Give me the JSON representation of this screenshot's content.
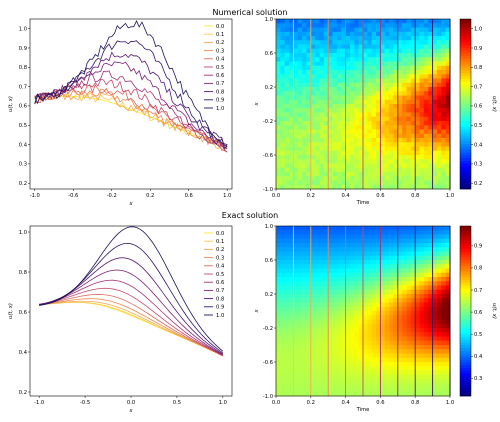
{
  "figure": {
    "title_top": "Numerical solution",
    "title_bottom": "Exact solution"
  },
  "chart_data": [
    {
      "id": "numerical-lines",
      "type": "line",
      "title": "Numerical solution",
      "xlabel": "x",
      "ylabel": "u(t, x)",
      "xlim": [
        -1.05,
        1.05
      ],
      "ylim": [
        0.17,
        1.05
      ],
      "xticks": [
        "-1.0",
        "-0.6",
        "-0.2",
        "0.2",
        "0.6",
        "1.0"
      ],
      "xtick_values": [
        -1.0,
        -0.6,
        -0.2,
        0.2,
        0.6,
        1.0
      ],
      "yticks": [
        "0.2",
        "0.3",
        "0.4",
        "0.5",
        "0.6",
        "0.7",
        "0.8",
        "0.9",
        "1.0"
      ],
      "ytick_values": [
        0.2,
        0.3,
        0.4,
        0.5,
        0.6,
        0.7,
        0.8,
        0.9,
        1.0
      ],
      "legend_position": "top-right",
      "noisy": true,
      "series": [
        {
          "name": "0.0",
          "t": 0.0
        },
        {
          "name": "0.1",
          "t": 0.1
        },
        {
          "name": "0.2",
          "t": 0.2
        },
        {
          "name": "0.3",
          "t": 0.3
        },
        {
          "name": "0.4",
          "t": 0.4
        },
        {
          "name": "0.5",
          "t": 0.5
        },
        {
          "name": "0.6",
          "t": 0.6
        },
        {
          "name": "0.7",
          "t": 0.7
        },
        {
          "name": "0.8",
          "t": 0.8
        },
        {
          "name": "0.9",
          "t": 0.9
        },
        {
          "name": "1.0",
          "t": 1.0
        }
      ]
    },
    {
      "id": "numerical-heatmap",
      "type": "heatmap",
      "xlabel": "Time",
      "ylabel": "x",
      "xticks": [
        "0.0",
        "0.2",
        "0.4",
        "0.6",
        "0.8",
        "1.0"
      ],
      "xtick_values": [
        0.0,
        0.2,
        0.4,
        0.6,
        0.8,
        1.0
      ],
      "yticks": [
        "1.0",
        "0.6",
        "0.2",
        "-0.2",
        "-0.6",
        "-1.0"
      ],
      "ytick_values": [
        1.0,
        0.6,
        0.2,
        -0.2,
        -0.6,
        -1.0
      ],
      "xlim": [
        0,
        1
      ],
      "ylim": [
        -1,
        1
      ],
      "vertical_lines_at_t": [
        0.0,
        0.1,
        0.2,
        0.3,
        0.4,
        0.5,
        0.6,
        0.7,
        0.8,
        0.9,
        1.0
      ],
      "colorbar_label": "u(t, x)",
      "colorbar_ticks": [
        "0.2",
        "0.3",
        "0.4",
        "0.5",
        "0.6",
        "0.7",
        "0.8",
        "0.9",
        "1.0"
      ],
      "colorbar_values": [
        0.2,
        0.3,
        0.4,
        0.5,
        0.6,
        0.7,
        0.8,
        0.9,
        1.0
      ],
      "colorbar_range": [
        0.17,
        1.05
      ],
      "colormap": "jet",
      "noisy": true
    },
    {
      "id": "exact-lines",
      "type": "line",
      "title": "Exact solution",
      "xlabel": "x",
      "ylabel": "u(t, x)",
      "xlim": [
        -1.1,
        1.1
      ],
      "ylim": [
        0.18,
        1.03
      ],
      "xticks": [
        "-1.0",
        "-0.5",
        "0.0",
        "0.5",
        "1.0"
      ],
      "xtick_values": [
        -1.0,
        -0.5,
        0.0,
        0.5,
        1.0
      ],
      "yticks": [
        "0.2",
        "0.4",
        "0.6",
        "0.8",
        "1.0"
      ],
      "ytick_values": [
        0.2,
        0.4,
        0.6,
        0.8,
        1.0
      ],
      "legend_position": "top-right",
      "noisy": false,
      "series": [
        {
          "name": "0.0",
          "t": 0.0
        },
        {
          "name": "0.1",
          "t": 0.1
        },
        {
          "name": "0.2",
          "t": 0.2
        },
        {
          "name": "0.3",
          "t": 0.3
        },
        {
          "name": "0.4",
          "t": 0.4
        },
        {
          "name": "0.5",
          "t": 0.5
        },
        {
          "name": "0.6",
          "t": 0.6
        },
        {
          "name": "0.7",
          "t": 0.7
        },
        {
          "name": "0.8",
          "t": 0.8
        },
        {
          "name": "0.9",
          "t": 0.9
        },
        {
          "name": "1.0",
          "t": 1.0
        }
      ]
    },
    {
      "id": "exact-heatmap",
      "type": "heatmap",
      "xlabel": "Time",
      "ylabel": "x",
      "xticks": [
        "0.0",
        "0.2",
        "0.4",
        "0.6",
        "0.8",
        "1.0"
      ],
      "xtick_values": [
        0.0,
        0.2,
        0.4,
        0.6,
        0.8,
        1.0
      ],
      "yticks": [
        "1.0",
        "0.6",
        "0.2",
        "-0.2",
        "-0.6",
        "-1.0"
      ],
      "ytick_values": [
        1.0,
        0.6,
        0.2,
        -0.2,
        -0.6,
        -1.0
      ],
      "xlim": [
        0,
        1
      ],
      "ylim": [
        -1,
        1
      ],
      "vertical_lines_at_t": [
        0.0,
        0.1,
        0.2,
        0.3,
        0.4,
        0.5,
        0.6,
        0.7,
        0.8,
        0.9,
        1.0
      ],
      "colorbar_label": "u(t, x)",
      "colorbar_ticks": [
        "0.3",
        "0.4",
        "0.5",
        "0.6",
        "0.7",
        "0.8",
        "0.9"
      ],
      "colorbar_values": [
        0.3,
        0.4,
        0.5,
        0.6,
        0.7,
        0.8,
        0.9
      ],
      "colorbar_range": [
        0.22,
        0.99
      ],
      "colormap": "jet",
      "noisy": false
    }
  ]
}
